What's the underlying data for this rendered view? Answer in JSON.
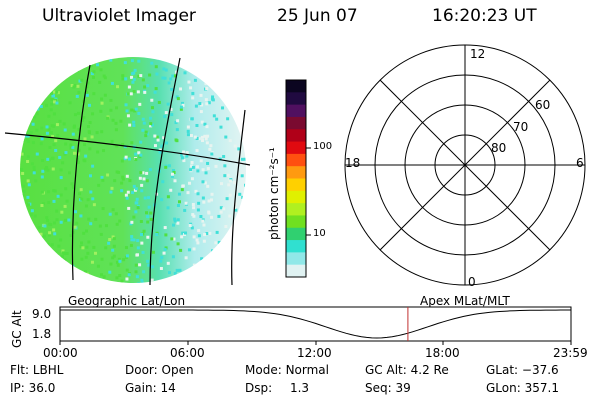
{
  "header": {
    "title": "Ultraviolet Imager",
    "date": "25 Jun 07",
    "time": "16:20:23 UT"
  },
  "colorbar": {
    "unit_label": "photon cm⁻²s⁻¹",
    "ticks": [
      "100",
      "10"
    ],
    "colors": [
      "#0b0520",
      "#200a40",
      "#501060",
      "#7a0a30",
      "#b00018",
      "#e00a10",
      "#ff5010",
      "#ff9a10",
      "#ffd000",
      "#e0f000",
      "#b0f020",
      "#70e020",
      "#30d070",
      "#30e0d0",
      "#90e8e8",
      "#e0f2f2"
    ]
  },
  "globe": {
    "label": "Geographic Lat/Lon",
    "colors": {
      "green": "#50e040",
      "cyan": "#40e0d8",
      "pale": "#e8f4f0"
    }
  },
  "polar": {
    "mlt_labels": [
      "12",
      "6",
      "0",
      "18"
    ],
    "lat_labels": [
      "60",
      "70",
      "80"
    ],
    "label": "Apex MLat/MLT"
  },
  "altitude_plot": {
    "axis_label": "GC Alt",
    "y_ticks": [
      "9.0",
      "1.8"
    ],
    "x_ticks": [
      "00:00",
      "06:00",
      "12:00",
      "18:00",
      "23:59"
    ],
    "marker_color": "#c03030"
  },
  "info": {
    "row1": [
      {
        "label": "Flt:",
        "value": "LBHL"
      },
      {
        "label": "Door:",
        "value": "Open"
      },
      {
        "label": "Mode:",
        "value": "Normal"
      },
      {
        "label": "GC Alt:",
        "value": "4.2 Re"
      },
      {
        "label": "GLat:",
        "value": "−37.6"
      }
    ],
    "row2": [
      {
        "label": "IP:",
        "value": "36.0"
      },
      {
        "label": "Gain:",
        "value": "14"
      },
      {
        "label": "Dsp:",
        "value": "1.3"
      },
      {
        "label": "Seq:",
        "value": "39"
      },
      {
        "label": "GLon:",
        "value": "357.1"
      }
    ]
  }
}
